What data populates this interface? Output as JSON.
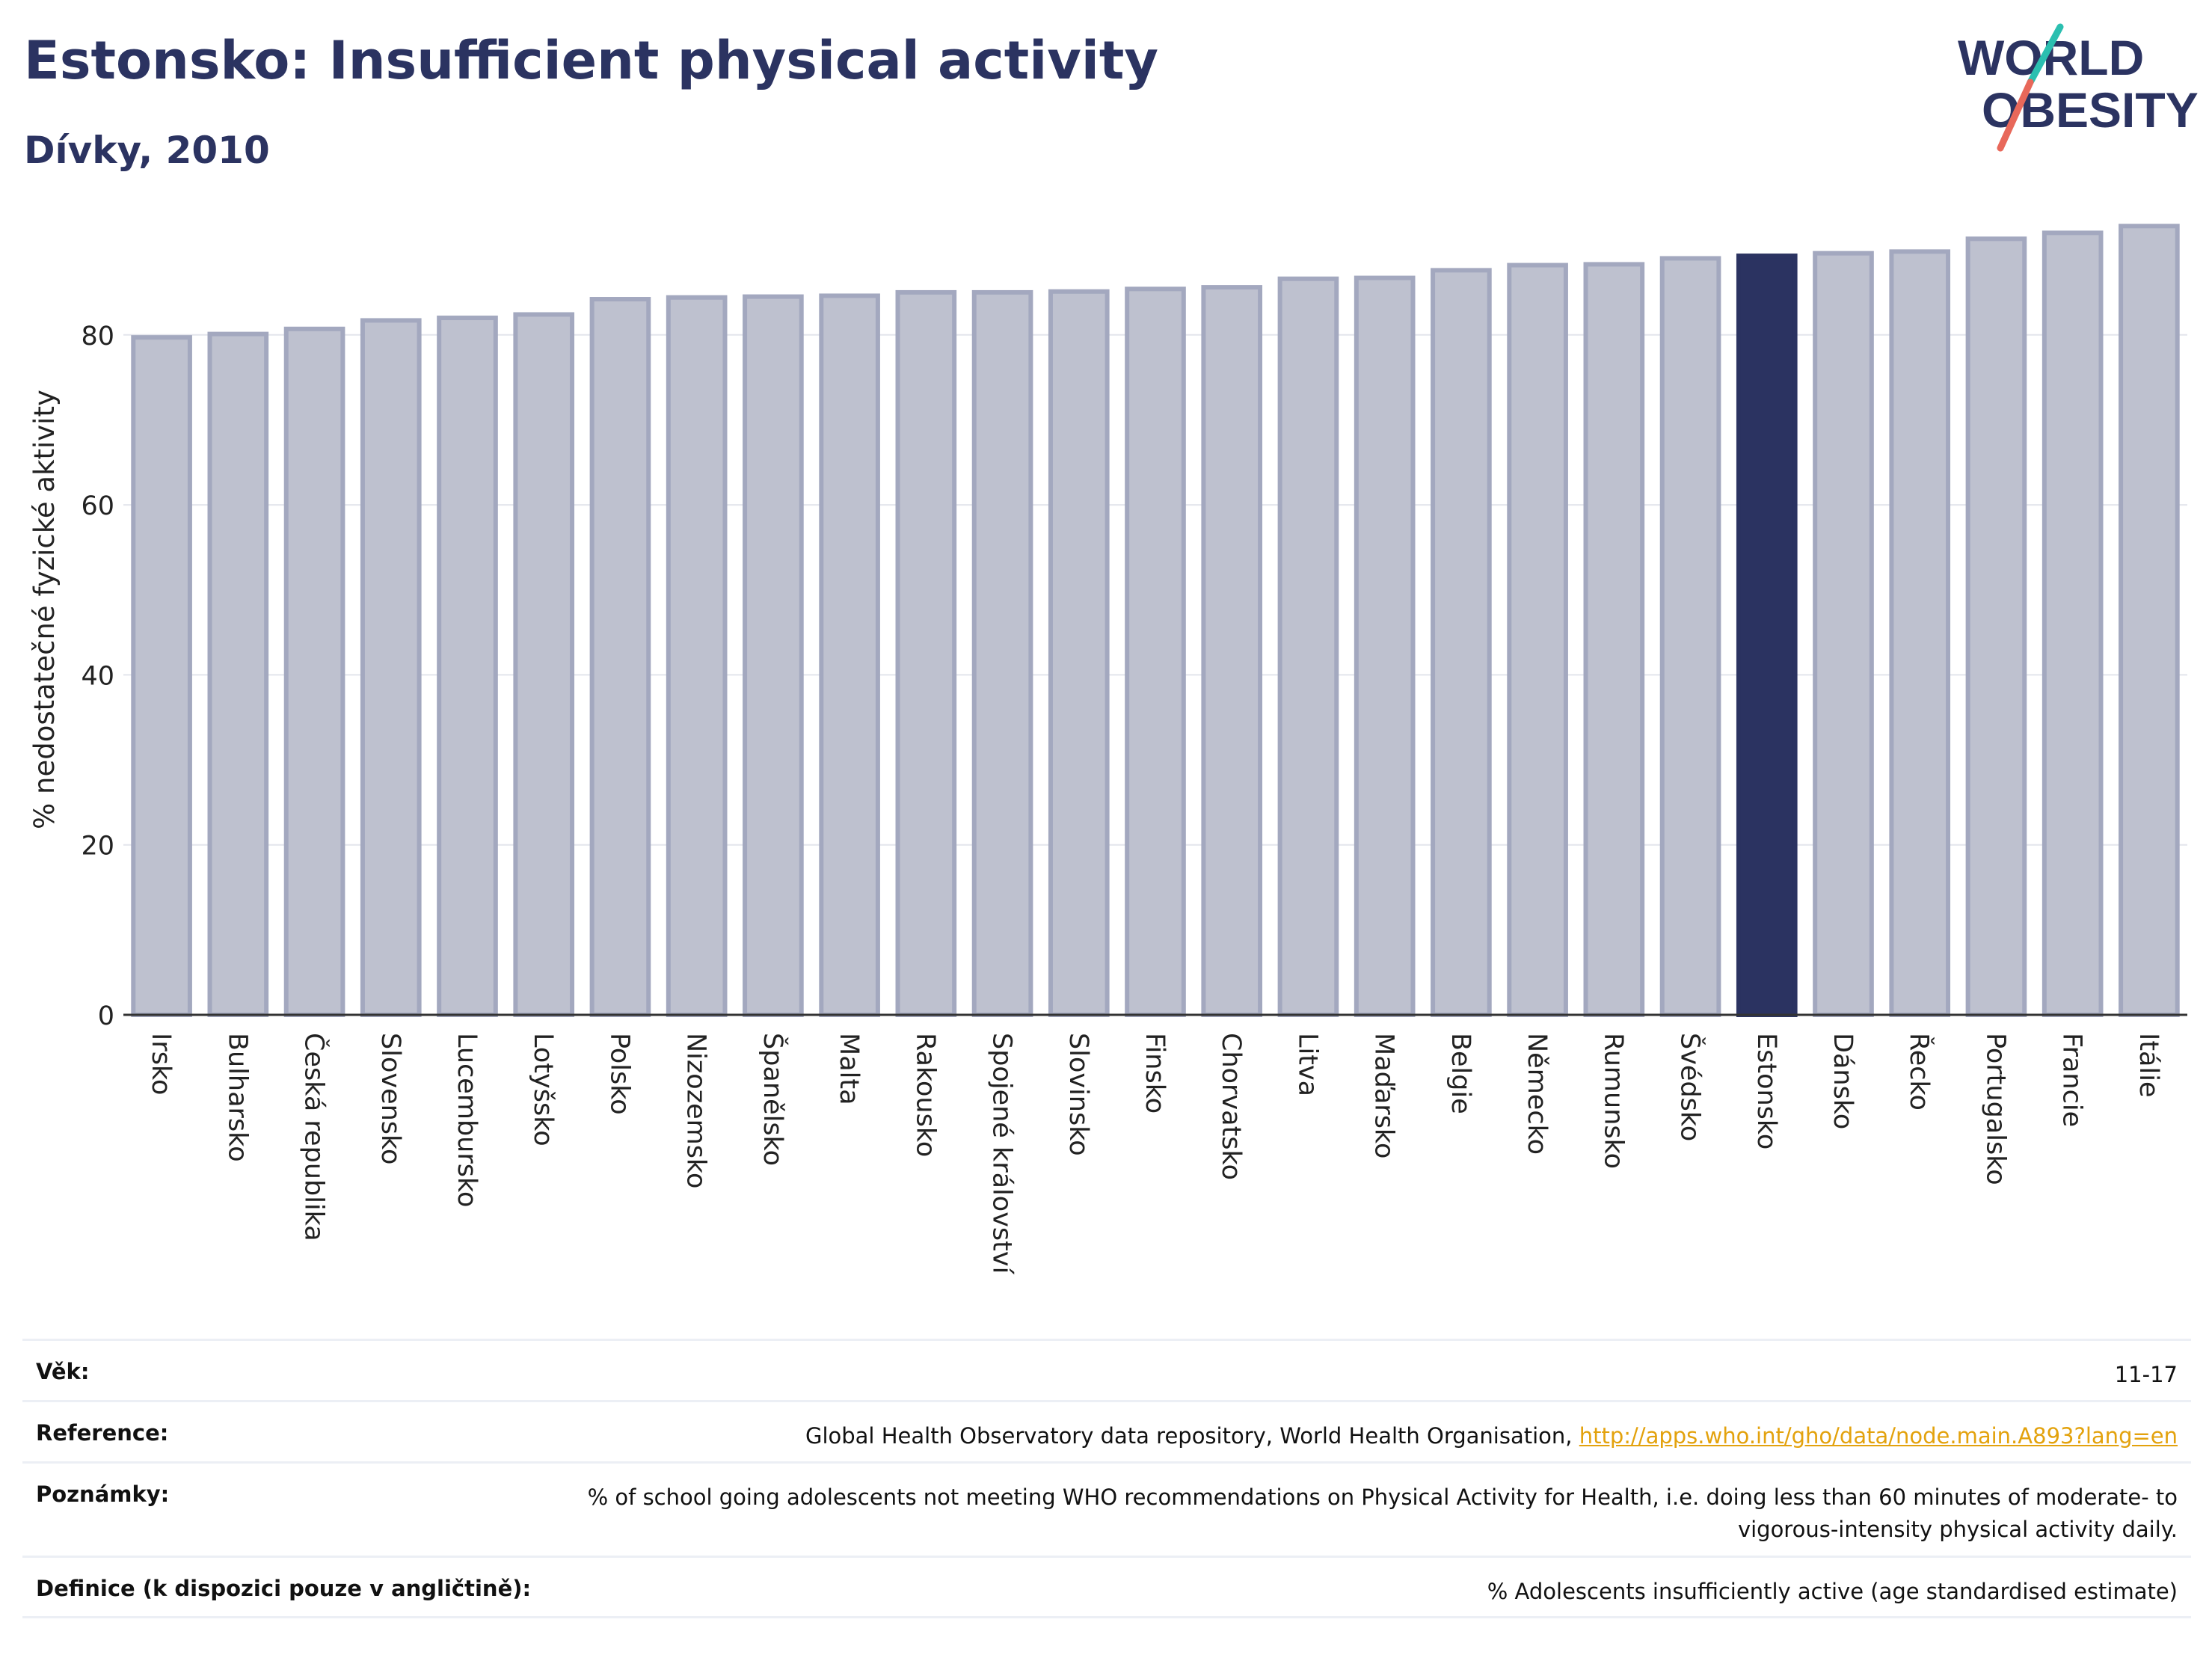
{
  "header": {
    "title": "Estonsko: Insufficient physical activity",
    "subtitle": "Dívky, 2010"
  },
  "logo": {
    "line1": "WORLD",
    "line2": "OBESITY",
    "accent_colors": [
      "#2bbfb0",
      "#e8685a"
    ]
  },
  "chart_data": {
    "type": "bar",
    "title": "Estonsko: Insufficient physical activity",
    "subtitle": "Dívky, 2010",
    "ylabel": "% nedostatečné fyzické aktivity",
    "xlabel": "",
    "ylim": [
      0,
      93
    ],
    "yticks": [
      0,
      20,
      40,
      60,
      80
    ],
    "grid": true,
    "categories": [
      "Irsko",
      "Bulharsko",
      "Česká republika",
      "Slovensko",
      "Lucembursko",
      "Lotyšsko",
      "Polsko",
      "Nizozemsko",
      "Španělsko",
      "Malta",
      "Rakousko",
      "Spojené království",
      "Slovinsko",
      "Finsko",
      "Chorvatsko",
      "Litva",
      "Maďarsko",
      "Belgie",
      "Německo",
      "Rumunsko",
      "Švédsko",
      "Estonsko",
      "Dánsko",
      "Řecko",
      "Portugalsko",
      "Francie",
      "Itálie"
    ],
    "values": [
      79.7,
      80.1,
      80.7,
      81.7,
      82.0,
      82.4,
      84.2,
      84.4,
      84.5,
      84.6,
      85.0,
      85.0,
      85.1,
      85.4,
      85.6,
      86.6,
      86.7,
      87.6,
      88.2,
      88.3,
      89.0,
      89.3,
      89.6,
      89.8,
      91.3,
      92.0,
      92.8
    ],
    "highlight": "Estonsko",
    "colors": {
      "default_fill": "#bec1cf",
      "default_stroke": "#a3a8bf",
      "highlight_fill": "#2b3361",
      "grid": "#e3e5ec",
      "axis": "#333333"
    }
  },
  "info": {
    "rows": [
      {
        "label": "Věk:",
        "value": "11-17"
      },
      {
        "label": "Reference:",
        "value": "Global Health Observatory data repository, World Health Organisation, ",
        "link": "http://apps.who.int/gho/data/node.main.A893?lang=en"
      },
      {
        "label": "Poznámky:",
        "value": "% of school going adolescents not meeting WHO recommendations on Physical Activity for Health, i.e. doing less than 60 minutes of moderate- to vigorous-intensity physical activity daily."
      },
      {
        "label": "Definice (k dispozici pouze v angličtině):",
        "value": "% Adolescents insufficiently active (age standardised estimate)"
      }
    ]
  }
}
